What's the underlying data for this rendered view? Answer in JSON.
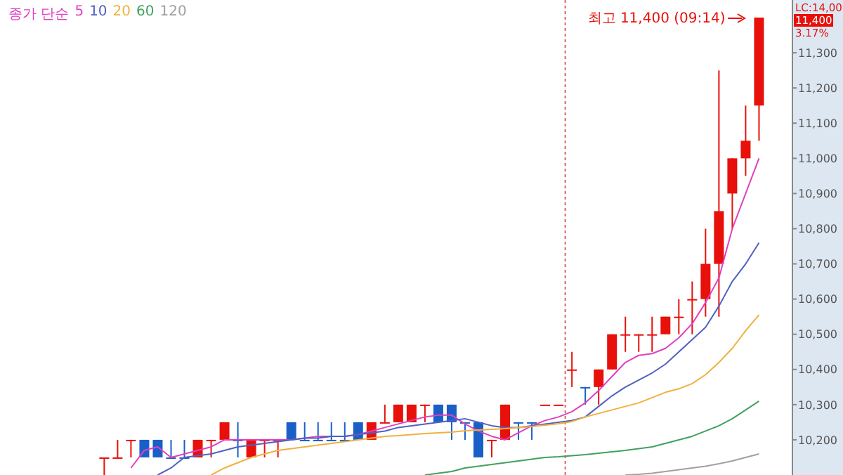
{
  "chart_data": {
    "type": "candlestick",
    "legend_title": "종가 단순",
    "legend": "top left",
    "categories": [
      null,
      null,
      null,
      null,
      null,
      null,
      null,
      null,
      null,
      null,
      null,
      null,
      null,
      null,
      null,
      null,
      null,
      null,
      null,
      null,
      null,
      null,
      null,
      null,
      null,
      null,
      null,
      null,
      null,
      null,
      null,
      null,
      null,
      null,
      null,
      null,
      null,
      null,
      null,
      null,
      null,
      null,
      null,
      null,
      null,
      null,
      null,
      null,
      null,
      null
    ],
    "ohlc": [
      [
        10150,
        10150,
        10100,
        10150
      ],
      [
        10150,
        10200,
        10150,
        10150
      ],
      [
        10200,
        10200,
        10150,
        10200
      ],
      [
        10200,
        10200,
        10150,
        10150
      ],
      [
        10200,
        10200,
        10150,
        10150
      ],
      [
        10150,
        10200,
        10150,
        10150
      ],
      [
        10150,
        10200,
        10150,
        10150
      ],
      [
        10150,
        10200,
        10150,
        10200
      ],
      [
        10200,
        10200,
        10150,
        10200
      ],
      [
        10200,
        10250,
        10200,
        10250
      ],
      [
        10200,
        10250,
        10150,
        10200
      ],
      [
        10150,
        10200,
        10150,
        10200
      ],
      [
        10200,
        10200,
        10150,
        10200
      ],
      [
        10200,
        10200,
        10150,
        10200
      ],
      [
        10250,
        10250,
        10200,
        10200
      ],
      [
        10200,
        10250,
        10200,
        10200
      ],
      [
        10200,
        10250,
        10200,
        10200
      ],
      [
        10200,
        10250,
        10200,
        10200
      ],
      [
        10200,
        10250,
        10200,
        10200
      ],
      [
        10250,
        10250,
        10200,
        10200
      ],
      [
        10200,
        10250,
        10200,
        10250
      ],
      [
        10250,
        10300,
        10250,
        10250
      ],
      [
        10250,
        10300,
        10250,
        10300
      ],
      [
        10250,
        10300,
        10250,
        10300
      ],
      [
        10300,
        10300,
        10250,
        10300
      ],
      [
        10300,
        10300,
        10250,
        10250
      ],
      [
        10300,
        10300,
        10200,
        10250
      ],
      [
        10250,
        10250,
        10200,
        10250
      ],
      [
        10250,
        10250,
        10150,
        10150
      ],
      [
        10200,
        10200,
        10150,
        10200
      ],
      [
        10200,
        10300,
        10200,
        10300
      ],
      [
        10250,
        10250,
        10200,
        10250
      ],
      [
        10250,
        10250,
        10200,
        10250
      ],
      [
        10300,
        10300,
        10300,
        10300
      ],
      [
        10300,
        10300,
        10300,
        10300
      ],
      [
        10400,
        10450,
        10350,
        10400
      ],
      [
        10350,
        10350,
        10300,
        10350
      ],
      [
        10350,
        10400,
        10300,
        10400
      ],
      [
        10400,
        10500,
        10400,
        10500
      ],
      [
        10500,
        10550,
        10450,
        10500
      ],
      [
        10500,
        10500,
        10450,
        10500
      ],
      [
        10500,
        10550,
        10450,
        10500
      ],
      [
        10500,
        10550,
        10500,
        10550
      ],
      [
        10550,
        10600,
        10500,
        10550
      ],
      [
        10600,
        10650,
        10500,
        10600
      ],
      [
        10600,
        10800,
        10550,
        10700
      ],
      [
        10700,
        11250,
        10550,
        10850
      ],
      [
        10900,
        11000,
        10800,
        11000
      ],
      [
        11000,
        11150,
        10950,
        11050
      ],
      [
        11150,
        11400,
        11050,
        11400
      ]
    ],
    "colors": [
      "#e8100a",
      "#e8100a",
      "#e8100a",
      "#1a5fc8",
      "#1a5fc8",
      "#1a5fc8",
      "#1a5fc8",
      "#e8100a",
      "#e8100a",
      "#e8100a",
      "#1a5fc8",
      "#e8100a",
      "#e8100a",
      "#e8100a",
      "#1a5fc8",
      "#1a5fc8",
      "#1a5fc8",
      "#1a5fc8",
      "#1a5fc8",
      "#1a5fc8",
      "#e8100a",
      "#e8100a",
      "#e8100a",
      "#e8100a",
      "#e8100a",
      "#1a5fc8",
      "#1a5fc8",
      "#1a5fc8",
      "#1a5fc8",
      "#e8100a",
      "#e8100a",
      "#1a5fc8",
      "#1a5fc8",
      "#e8100a",
      "#e8100a",
      "#e8100a",
      "#1a5fc8",
      "#e8100a",
      "#e8100a",
      "#e8100a",
      "#e8100a",
      "#e8100a",
      "#e8100a",
      "#e8100a",
      "#e8100a",
      "#e8100a",
      "#e8100a",
      "#e8100a",
      "#e8100a",
      "#e8100a"
    ],
    "series": [
      {
        "name": "5",
        "type": "line",
        "color": "#e040c0",
        "values": [
          null,
          null,
          10120,
          10170,
          10180,
          10150,
          10160,
          10170,
          10180,
          10200,
          10200,
          10200,
          10200,
          10200,
          10200,
          10205,
          10210,
          10210,
          10210,
          10215,
          10225,
          10235,
          10245,
          10255,
          10265,
          10270,
          10270,
          10245,
          10225,
          10210,
          10200,
          10220,
          10240,
          10255,
          10265,
          10280,
          10305,
          10340,
          10380,
          10420,
          10440,
          10445,
          10460,
          10490,
          10530,
          10590,
          10660,
          10800,
          10900,
          11000
        ]
      },
      {
        "name": "10",
        "type": "line",
        "color": "#5060c0",
        "values": [
          null,
          null,
          null,
          null,
          10100,
          10120,
          10150,
          10155,
          10160,
          10170,
          10180,
          10185,
          10190,
          10195,
          10200,
          10205,
          10205,
          10210,
          10210,
          10215,
          10220,
          10225,
          10235,
          10240,
          10245,
          10250,
          10255,
          10260,
          10250,
          10240,
          10235,
          10235,
          10240,
          10245,
          10250,
          10255,
          10265,
          10295,
          10325,
          10350,
          10370,
          10390,
          10415,
          10450,
          10485,
          10520,
          10580,
          10650,
          10700,
          10760
        ]
      },
      {
        "name": "20",
        "type": "line",
        "color": "#f0b040",
        "values": [
          null,
          null,
          null,
          null,
          null,
          null,
          null,
          null,
          10100,
          10120,
          10135,
          10150,
          10160,
          10170,
          10175,
          10180,
          10185,
          10190,
          10195,
          10200,
          10205,
          10210,
          10212,
          10215,
          10218,
          10220,
          10222,
          10226,
          10228,
          10230,
          10232,
          10235,
          10238,
          10242,
          10246,
          10252,
          10265,
          10275,
          10285,
          10295,
          10305,
          10320,
          10335,
          10345,
          10360,
          10385,
          10420,
          10460,
          10510,
          10555
        ]
      },
      {
        "name": "60",
        "type": "line",
        "color": "#40a060",
        "values": [
          null,
          null,
          null,
          null,
          null,
          null,
          null,
          null,
          null,
          null,
          null,
          null,
          null,
          null,
          null,
          null,
          null,
          null,
          null,
          null,
          null,
          null,
          null,
          null,
          10100,
          10105,
          10110,
          10120,
          10125,
          10130,
          10135,
          10140,
          10145,
          10150,
          10152,
          10155,
          10158,
          10162,
          10166,
          10170,
          10175,
          10180,
          10190,
          10200,
          10210,
          10225,
          10240,
          10260,
          10285,
          10310
        ]
      },
      {
        "name": "120",
        "type": "line",
        "color": "#a0a0a0",
        "values": [
          null,
          null,
          null,
          null,
          null,
          null,
          null,
          null,
          null,
          null,
          null,
          null,
          null,
          null,
          null,
          null,
          null,
          null,
          null,
          null,
          null,
          null,
          null,
          null,
          null,
          null,
          null,
          null,
          null,
          null,
          null,
          null,
          null,
          null,
          null,
          null,
          null,
          null,
          null,
          10100,
          10102,
          10105,
          10110,
          10115,
          10120,
          10125,
          10132,
          10140,
          10150,
          10160
        ]
      }
    ],
    "ylim": [
      10100,
      11450
    ],
    "yticks": [
      {
        "value": 10200,
        "label": "10,200"
      },
      {
        "value": 10300,
        "label": "10,300"
      },
      {
        "value": 10400,
        "label": "10,400"
      },
      {
        "value": 10500,
        "label": "10,500"
      },
      {
        "value": 10600,
        "label": "10,600"
      },
      {
        "value": 10700,
        "label": "10,700"
      },
      {
        "value": 10800,
        "label": "10,800"
      },
      {
        "value": 10900,
        "label": "10,900"
      },
      {
        "value": 11000,
        "label": "11,000"
      },
      {
        "value": 11100,
        "label": "11,100"
      },
      {
        "value": 11200,
        "label": "11,200"
      },
      {
        "value": 11300,
        "label": "11,300"
      }
    ],
    "annotations": [
      "최고 11,400 (09:14)",
      "LC:14,00",
      "11,400",
      "3.17%"
    ]
  }
}
